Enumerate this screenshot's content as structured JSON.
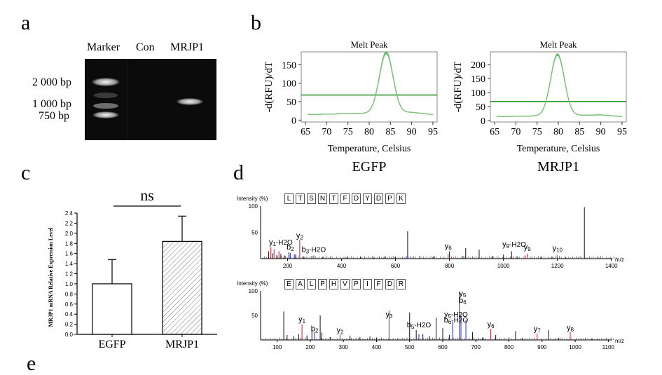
{
  "labels": {
    "a": "a",
    "b": "b",
    "c": "c",
    "d": "d",
    "e": "e"
  },
  "gel": {
    "lane_labels": [
      "Marker",
      "Con",
      "MRJP1"
    ],
    "ladder": [
      "2 000 bp",
      "1 000 bp",
      "750 bp"
    ]
  },
  "melt": [
    {
      "title": "Melt Peak",
      "ylabel": "-d(RFU)/dT",
      "xlabel": "Temperature, Celsius",
      "caption": "EGFP",
      "xticks": [
        "65",
        "70",
        "75",
        "80",
        "85",
        "90",
        "95"
      ],
      "yticks": [
        "0",
        "50",
        "100",
        "150"
      ],
      "xlim": [
        64,
        96
      ],
      "ylim": [
        -5,
        185
      ],
      "peak_x": 84,
      "peak_y": 178,
      "baseline_y": 15,
      "threshold_y": 68
    },
    {
      "title": "Melt Peak",
      "ylabel": "-d(RFU)/dT",
      "xlabel": "Temperature, Celsius",
      "caption": "MRJP1",
      "xticks": [
        "65",
        "70",
        "75",
        "80",
        "85",
        "90",
        "95"
      ],
      "yticks": [
        "0",
        "50",
        "100",
        "150",
        "200"
      ],
      "xlim": [
        64,
        96
      ],
      "ylim": [
        -5,
        245
      ],
      "peak_x": 79.8,
      "peak_y": 232,
      "baseline_y": 14,
      "threshold_y": 68
    }
  ],
  "chart_data": [
    {
      "type": "bar",
      "categories": [
        "EGFP",
        "MRJP1"
      ],
      "values": [
        1.0,
        1.84
      ],
      "errors": [
        0.48,
        0.5
      ],
      "ylabel": "MRJP1 mRNA Relative Expression Level",
      "yticks": [
        "0.0",
        "0.2",
        "0.4",
        "0.6",
        "0.8",
        "1.0",
        "1.2",
        "1.4",
        "1.6",
        "1.8",
        "2.0",
        "2.2",
        "2.4"
      ],
      "ylim": [
        0,
        2.4
      ],
      "annotation": "ns"
    },
    {
      "type": "bar",
      "title_peptide": [
        "L",
        "T",
        "S",
        "N",
        "T",
        "F",
        "D",
        "Y",
        "D",
        "P",
        "K"
      ],
      "ylabel": "Intensity (%)",
      "xlabel": "m/z",
      "xlim": [
        100,
        1450
      ],
      "ylim": [
        0,
        100
      ],
      "xticks": [
        "200",
        "400",
        "600",
        "800",
        "1000",
        "1200",
        "1400"
      ],
      "yticks": [
        "100",
        "50"
      ],
      "ion_labels": [
        {
          "text": "y1-H2O",
          "x": 175,
          "y": 24
        },
        {
          "text": "b2",
          "x": 210,
          "y": 15
        },
        {
          "text": "y2",
          "x": 245,
          "y": 37
        },
        {
          "text": "b3-H2O",
          "x": 297,
          "y": 10
        },
        {
          "text": "y6",
          "x": 795,
          "y": 17
        },
        {
          "text": "y9-H2O",
          "x": 1040,
          "y": 20
        },
        {
          "text": "y9",
          "x": 1088,
          "y": 15
        },
        {
          "text": "y10",
          "x": 1200,
          "y": 13
        }
      ],
      "peaks_black": [
        [
          130,
          14
        ],
        [
          145,
          10
        ],
        [
          160,
          7
        ],
        [
          175,
          9
        ],
        [
          190,
          6
        ],
        [
          205,
          12
        ],
        [
          230,
          8
        ],
        [
          260,
          4
        ],
        [
          290,
          5
        ],
        [
          330,
          3
        ],
        [
          360,
          4
        ],
        [
          420,
          3
        ],
        [
          470,
          4
        ],
        [
          520,
          3
        ],
        [
          560,
          4
        ],
        [
          600,
          4
        ],
        [
          645,
          52
        ],
        [
          690,
          5
        ],
        [
          740,
          4
        ],
        [
          800,
          14
        ],
        [
          850,
          5
        ],
        [
          860,
          20
        ],
        [
          910,
          17
        ],
        [
          960,
          5
        ],
        [
          1000,
          8
        ],
        [
          1030,
          14
        ],
        [
          1080,
          6
        ],
        [
          1140,
          4
        ],
        [
          1180,
          4
        ],
        [
          1230,
          3
        ],
        [
          1300,
          98
        ]
      ],
      "peaks_red": [
        [
          138,
          22
        ],
        [
          150,
          18
        ],
        [
          168,
          14
        ],
        [
          245,
          36
        ],
        [
          795,
          9
        ],
        [
          1088,
          9
        ],
        [
          1199,
          7
        ]
      ],
      "peaks_blue": [
        [
          210,
          11
        ],
        [
          225,
          8
        ],
        [
          297,
          6
        ],
        [
          540,
          4
        ],
        [
          640,
          5
        ],
        [
          1050,
          4
        ]
      ]
    },
    {
      "type": "bar",
      "title_peptide": [
        "E",
        "A",
        "L",
        "P",
        "H",
        "V",
        "P",
        "I",
        "F",
        "D",
        "R"
      ],
      "ylabel": "Intensity (%)",
      "xlabel": "m/z",
      "xlim": [
        50,
        1150
      ],
      "ylim": [
        0,
        100
      ],
      "xticks": [
        "100",
        "200",
        "300",
        "400",
        "500",
        "600",
        "700",
        "800",
        "900",
        "1000",
        "1100"
      ],
      "yticks": [
        "100",
        "50"
      ],
      "ion_labels": [
        {
          "text": "y1",
          "x": 175,
          "y": 34
        },
        {
          "text": "b2",
          "x": 213,
          "y": 15
        },
        {
          "text": "y2",
          "x": 290,
          "y": 12
        },
        {
          "text": "y3",
          "x": 438,
          "y": 44
        },
        {
          "text": "b5-H2O",
          "x": 528,
          "y": 23
        },
        {
          "text": "y5-H2O",
          "x": 640,
          "y": 44
        },
        {
          "text": "b6-H2O",
          "x": 640,
          "y": 33
        },
        {
          "text": "y5",
          "x": 660,
          "y": 87
        },
        {
          "text": "b6",
          "x": 660,
          "y": 73
        },
        {
          "text": "y6",
          "x": 745,
          "y": 24
        },
        {
          "text": "y7",
          "x": 885,
          "y": 15
        },
        {
          "text": "y8",
          "x": 985,
          "y": 17
        }
      ],
      "peaks_black": [
        [
          120,
          58
        ],
        [
          130,
          10
        ],
        [
          150,
          8
        ],
        [
          165,
          12
        ],
        [
          190,
          9
        ],
        [
          205,
          22
        ],
        [
          230,
          50
        ],
        [
          235,
          15
        ],
        [
          260,
          6
        ],
        [
          290,
          8
        ],
        [
          320,
          9
        ],
        [
          350,
          6
        ],
        [
          380,
          7
        ],
        [
          400,
          5
        ],
        [
          500,
          56
        ],
        [
          520,
          20
        ],
        [
          540,
          12
        ],
        [
          560,
          8
        ],
        [
          580,
          45
        ],
        [
          600,
          24
        ],
        [
          620,
          10
        ],
        [
          690,
          16
        ],
        [
          720,
          5
        ],
        [
          760,
          10
        ],
        [
          800,
          5
        ],
        [
          820,
          18
        ],
        [
          840,
          4
        ],
        [
          920,
          20
        ],
        [
          950,
          4
        ],
        [
          1050,
          3
        ]
      ],
      "peaks_red": [
        [
          175,
          32
        ],
        [
          290,
          11
        ],
        [
          438,
          60
        ],
        [
          590,
          5
        ],
        [
          745,
          22
        ],
        [
          885,
          13
        ],
        [
          985,
          16
        ]
      ],
      "peaks_blue": [
        [
          213,
          16
        ],
        [
          528,
          12
        ],
        [
          630,
          38
        ],
        [
          650,
          98
        ],
        [
          655,
          50
        ],
        [
          670,
          40
        ]
      ]
    }
  ]
}
